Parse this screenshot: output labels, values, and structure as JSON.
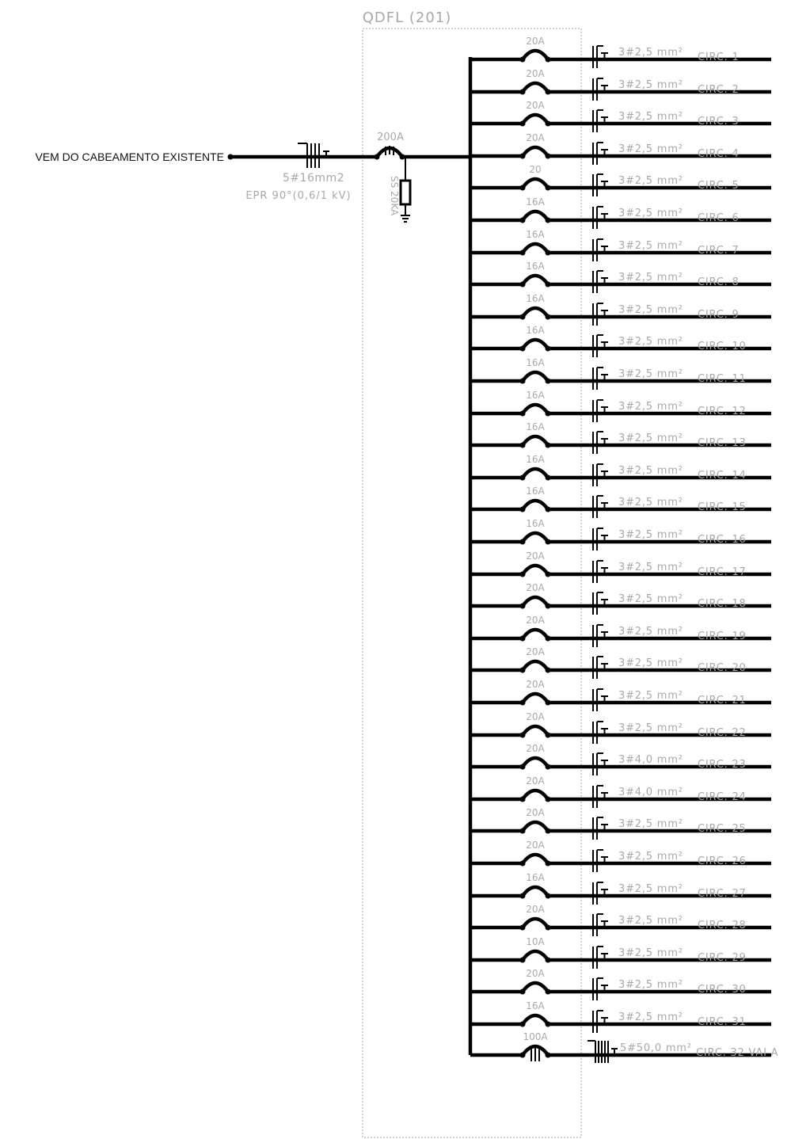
{
  "panel": {
    "name": "QDFL (201)"
  },
  "feeder": {
    "source_label": "VEM DO CABEAMENTO EXISTENTE",
    "cable": "5#16mm2",
    "insulation": "EPR 90°(0,6/1 kV)",
    "main_breaker": "200A",
    "surge_protector": "SS 20KA"
  },
  "circuits": [
    {
      "breaker": "20A",
      "cable": "3#2,5",
      "unit": "mm²",
      "name": "CIRC. 1"
    },
    {
      "breaker": "20A",
      "cable": "3#2,5",
      "unit": "mm²",
      "name": "CIRC. 2"
    },
    {
      "breaker": "20A",
      "cable": "3#2,5",
      "unit": "mm²",
      "name": "CIRC. 3"
    },
    {
      "breaker": "20A",
      "cable": "3#2,5",
      "unit": "mm²",
      "name": "CIRC. 4"
    },
    {
      "breaker": "20",
      "cable": "3#2,5",
      "unit": "mm²",
      "name": "CIRC. 5"
    },
    {
      "breaker": "16A",
      "cable": "3#2,5",
      "unit": "mm²",
      "name": "CIRC. 6"
    },
    {
      "breaker": "16A",
      "cable": "3#2,5",
      "unit": "mm²",
      "name": "CIRC. 7"
    },
    {
      "breaker": "16A",
      "cable": "3#2,5",
      "unit": "mm²",
      "name": "CIRC. 8"
    },
    {
      "breaker": "16A",
      "cable": "3#2,5",
      "unit": "mm²",
      "name": "CIRC. 9"
    },
    {
      "breaker": "16A",
      "cable": "3#2,5",
      "unit": "mm²",
      "name": "CIRC. 10"
    },
    {
      "breaker": "16A",
      "cable": "3#2,5",
      "unit": "mm²",
      "name": "CIRC. 11"
    },
    {
      "breaker": "16A",
      "cable": "3#2,5",
      "unit": "mm²",
      "name": "CIRC. 12"
    },
    {
      "breaker": "16A",
      "cable": "3#2,5",
      "unit": "mm²",
      "name": "CIRC. 13"
    },
    {
      "breaker": "16A",
      "cable": "3#2,5",
      "unit": "mm²",
      "name": "CIRC. 14"
    },
    {
      "breaker": "16A",
      "cable": "3#2,5",
      "unit": "mm²",
      "name": "CIRC. 15"
    },
    {
      "breaker": "16A",
      "cable": "3#2,5",
      "unit": "mm²",
      "name": "CIRC. 16"
    },
    {
      "breaker": "20A",
      "cable": "3#2,5",
      "unit": "mm²",
      "name": "CIRC. 17"
    },
    {
      "breaker": "20A",
      "cable": "3#2,5",
      "unit": "mm²",
      "name": "CIRC. 18"
    },
    {
      "breaker": "20A",
      "cable": "3#2,5",
      "unit": "mm²",
      "name": "CIRC. 19"
    },
    {
      "breaker": "20A",
      "cable": "3#2,5",
      "unit": "mm²",
      "name": "CIRC. 20"
    },
    {
      "breaker": "20A",
      "cable": "3#2,5",
      "unit": "mm²",
      "name": "CIRC. 21"
    },
    {
      "breaker": "20A",
      "cable": "3#2,5",
      "unit": "mm²",
      "name": "CIRC. 22"
    },
    {
      "breaker": "20A",
      "cable": "3#4,0",
      "unit": "mm²",
      "name": "CIRC. 23"
    },
    {
      "breaker": "20A",
      "cable": "3#4,0",
      "unit": "mm²",
      "name": "CIRC. 24"
    },
    {
      "breaker": "20A",
      "cable": "3#2,5",
      "unit": "mm²",
      "name": "CIRC. 25"
    },
    {
      "breaker": "20A",
      "cable": "3#2,5",
      "unit": "mm²",
      "name": "CIRC. 26"
    },
    {
      "breaker": "16A",
      "cable": "3#2,5",
      "unit": "mm²",
      "name": "CIRC. 27"
    },
    {
      "breaker": "20A",
      "cable": "3#2,5",
      "unit": "mm²",
      "name": "CIRC. 28"
    },
    {
      "breaker": "10A",
      "cable": "3#2,5",
      "unit": "mm²",
      "name": "CIRC. 29"
    },
    {
      "breaker": "20A",
      "cable": "3#2,5",
      "unit": "mm²",
      "name": "CIRC. 30"
    },
    {
      "breaker": "16A",
      "cable": "3#2,5",
      "unit": "mm²",
      "name": "CIRC. 31"
    },
    {
      "breaker": "100A",
      "cable": "5#50,0",
      "unit": "mm²",
      "name": "CIRC. 32 VAI A"
    }
  ]
}
